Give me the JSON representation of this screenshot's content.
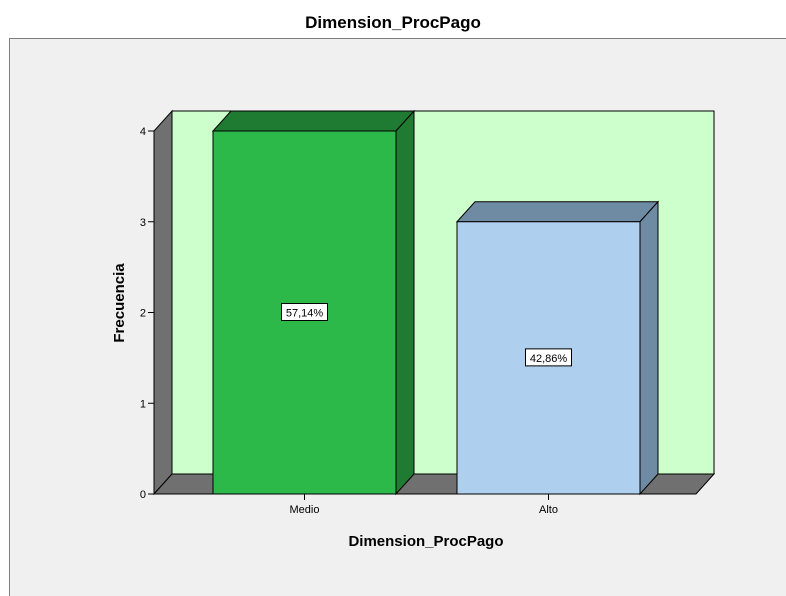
{
  "chart_data": {
    "type": "bar",
    "title": "Dimension_ProcPago",
    "xlabel": "Dimension_ProcPago",
    "ylabel": "Frecuencia",
    "categories": [
      "Medio",
      "Alto"
    ],
    "values": [
      4,
      3
    ],
    "data_labels": [
      "57,14%",
      "42,86%"
    ],
    "ylim": [
      0,
      4
    ],
    "yticks": [
      "0",
      "1",
      "2",
      "3",
      "4"
    ],
    "three_d": true,
    "colors": {
      "bars": [
        "#2db84a",
        "#aecfee"
      ],
      "bar_tops": [
        "#1f7a32",
        "#6f8aa3"
      ],
      "bar_sides": [
        "#1f7a32",
        "#6f8aa3"
      ],
      "plot_background": "#ccffcc",
      "wall_side": "#707070",
      "floor": "#707070",
      "outer_background": "#f0f0f0"
    }
  }
}
